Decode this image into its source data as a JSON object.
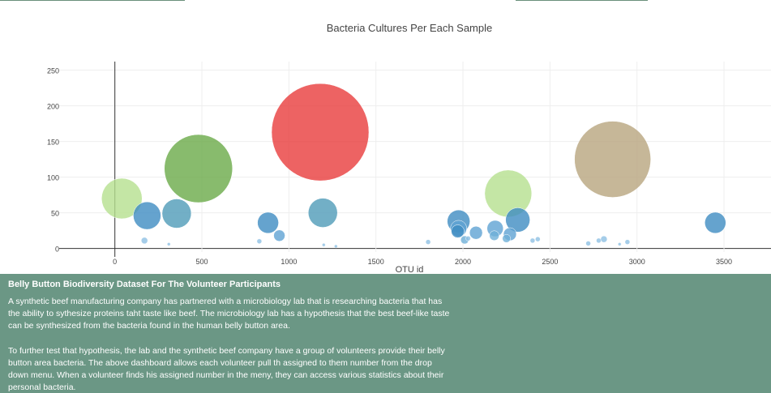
{
  "chart_data": {
    "type": "scatter",
    "subtype": "bubble",
    "title": "Bacteria Cultures Per Each Sample",
    "xlabel": "OTU id",
    "ylabel": "",
    "xlim": [
      -320,
      3770
    ],
    "ylim": [
      -5,
      262
    ],
    "xticks": [
      0,
      500,
      1000,
      1500,
      2000,
      2500,
      3000,
      3500
    ],
    "yticks": [
      0,
      50,
      100,
      150,
      200,
      250
    ],
    "grid": true,
    "legend": "none",
    "points": [
      {
        "x": 40,
        "y": 70,
        "r": 25,
        "color": "#b5e08f"
      },
      {
        "x": 185,
        "y": 46,
        "r": 17,
        "color": "#3f8cc2"
      },
      {
        "x": 355,
        "y": 49,
        "r": 18,
        "color": "#4f9bb8"
      },
      {
        "x": 480,
        "y": 112,
        "r": 42,
        "color": "#6aaa48"
      },
      {
        "x": 880,
        "y": 36,
        "r": 13,
        "color": "#3f8cc2"
      },
      {
        "x": 945,
        "y": 18,
        "r": 7,
        "color": "#5fa2d3"
      },
      {
        "x": 1180,
        "y": 163,
        "r": 60,
        "color": "#e83c3c"
      },
      {
        "x": 1195,
        "y": 50,
        "r": 18,
        "color": "#4f9bb8"
      },
      {
        "x": 1975,
        "y": 38,
        "r": 14,
        "color": "#3f8cc2"
      },
      {
        "x": 1975,
        "y": 28,
        "r": 10,
        "color": "#5fa2d3"
      },
      {
        "x": 1970,
        "y": 24,
        "r": 8,
        "color": "#3f8cc2"
      },
      {
        "x": 2010,
        "y": 12,
        "r": 5,
        "color": "#6fb0d8"
      },
      {
        "x": 2075,
        "y": 22,
        "r": 8,
        "color": "#5fa2d3"
      },
      {
        "x": 2185,
        "y": 28,
        "r": 10,
        "color": "#5fa2d3"
      },
      {
        "x": 2180,
        "y": 18,
        "r": 6,
        "color": "#6fb0d8"
      },
      {
        "x": 2260,
        "y": 77,
        "r": 29,
        "color": "#b5e08f"
      },
      {
        "x": 2315,
        "y": 40,
        "r": 15,
        "color": "#3f8cc2"
      },
      {
        "x": 2270,
        "y": 20,
        "r": 8,
        "color": "#5fa2d3"
      },
      {
        "x": 2250,
        "y": 14,
        "r": 5,
        "color": "#6fb0d8"
      },
      {
        "x": 2860,
        "y": 125,
        "r": 47,
        "color": "#b8a57e"
      },
      {
        "x": 3450,
        "y": 36,
        "r": 13,
        "color": "#3f8cc2"
      },
      {
        "x": 170,
        "y": 11,
        "r": 4,
        "color": "#8fc1e3"
      },
      {
        "x": 310,
        "y": 6,
        "r": 2,
        "color": "#8fc1e3"
      },
      {
        "x": 830,
        "y": 10,
        "r": 3,
        "color": "#8fc1e3"
      },
      {
        "x": 1200,
        "y": 5,
        "r": 2,
        "color": "#8fc1e3"
      },
      {
        "x": 1270,
        "y": 3,
        "r": 2,
        "color": "#8fc1e3"
      },
      {
        "x": 1800,
        "y": 9,
        "r": 3,
        "color": "#8fc1e3"
      },
      {
        "x": 2030,
        "y": 14,
        "r": 3,
        "color": "#8fc1e3"
      },
      {
        "x": 2400,
        "y": 11,
        "r": 3,
        "color": "#8fc1e3"
      },
      {
        "x": 2430,
        "y": 13,
        "r": 3,
        "color": "#8fc1e3"
      },
      {
        "x": 2720,
        "y": 7,
        "r": 3,
        "color": "#8fc1e3"
      },
      {
        "x": 2780,
        "y": 11,
        "r": 3,
        "color": "#8fc1e3"
      },
      {
        "x": 2810,
        "y": 13,
        "r": 4,
        "color": "#8fc1e3"
      },
      {
        "x": 2900,
        "y": 6,
        "r": 2,
        "color": "#8fc1e3"
      },
      {
        "x": 2945,
        "y": 9,
        "r": 3,
        "color": "#8fc1e3"
      }
    ]
  },
  "info": {
    "title": "Belly Button Biodiversity Dataset For The Volunteer Participants",
    "paragraph1": "A synthetic beef manufacturing company has partnered with a microbiology lab that is researching bacteria that has the ability to sythesize proteins taht taste like beef. The microbiology lab has a hypothesis that the best beef-like taste can be synthesized from the bacteria found in the human belly button area.",
    "paragraph2": "To further test that hypothesis, the lab and the synthetic beef company have a group of volunteers provide their belly button area bacteria. The above dashboard allows each volunteer pull th assigned to them number from the drop down menu. When a volunteer finds his assigned number in the meny, they can access various statistics about their personal bacteria."
  },
  "colors": {
    "panel_bg": "#6b9785",
    "top_accent": "#6a8f7a"
  }
}
